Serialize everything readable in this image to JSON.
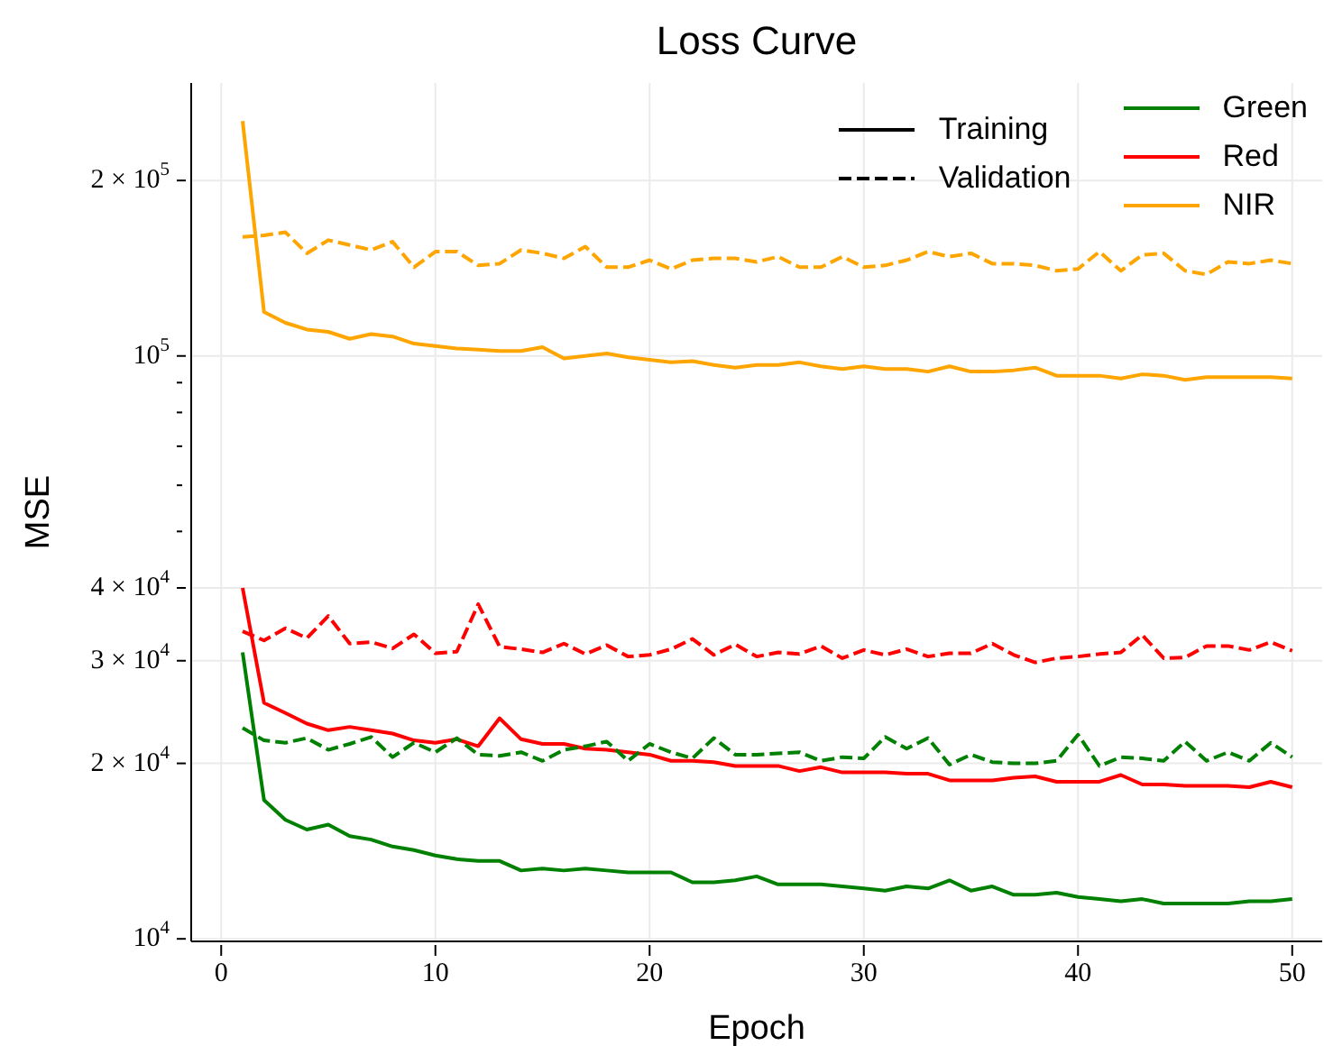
{
  "chart_data": {
    "type": "line",
    "title": "Loss Curve",
    "xlabel": "Epoch",
    "ylabel": "MSE",
    "x": [
      1,
      2,
      3,
      4,
      5,
      6,
      7,
      8,
      9,
      10,
      11,
      12,
      13,
      14,
      15,
      16,
      17,
      18,
      19,
      20,
      21,
      22,
      23,
      24,
      25,
      26,
      27,
      28,
      29,
      30,
      31,
      32,
      33,
      34,
      35,
      36,
      37,
      38,
      39,
      40,
      41,
      42,
      43,
      44,
      45,
      46,
      47,
      48,
      49,
      50
    ],
    "xlim": [
      -1.4,
      51.4
    ],
    "xticks": [
      0,
      10,
      20,
      30,
      40,
      50
    ],
    "log": "y",
    "ylim": [
      9900,
      294000
    ],
    "yticks": [
      {
        "value": 10000,
        "label": "10$^{4}$"
      },
      {
        "value": 20000,
        "label": "2 × 10$^{4}$"
      },
      {
        "value": 30000,
        "label": "3 × 10$^{4}$"
      },
      {
        "value": 40000,
        "label": "4 × 10$^{4}$"
      },
      {
        "value": 50000,
        "label": null
      },
      {
        "value": 60000,
        "label": null
      },
      {
        "value": 70000,
        "label": null
      },
      {
        "value": 80000,
        "label": null
      },
      {
        "value": 90000,
        "label": null
      },
      {
        "value": 100000,
        "label": "10$^{5}$"
      },
      {
        "value": 200000,
        "label": "2 × 10$^{5}$"
      }
    ],
    "grid": true,
    "legend": "top right",
    "marker": "none",
    "series": [
      {
        "name": "Training",
        "color": "#000000",
        "line_style": "solid",
        "values": [
          null,
          null,
          null,
          null,
          null,
          null,
          null,
          null,
          null,
          null,
          null,
          null,
          null,
          null,
          null,
          null,
          null,
          null,
          null,
          null,
          null,
          null,
          null,
          null,
          null,
          null,
          null,
          null,
          null,
          null,
          null,
          null,
          null,
          null,
          null,
          null,
          null,
          null,
          null,
          null,
          null,
          null,
          null,
          null,
          null,
          null,
          null,
          null,
          null,
          null
        ]
      },
      {
        "name": "Validation",
        "color": "#000000",
        "line_style": "dashed",
        "values": [
          null,
          null,
          null,
          null,
          null,
          null,
          null,
          null,
          null,
          null,
          null,
          null,
          null,
          null,
          null,
          null,
          null,
          null,
          null,
          null,
          null,
          null,
          null,
          null,
          null,
          null,
          null,
          null,
          null,
          null,
          null,
          null,
          null,
          null,
          null,
          null,
          null,
          null,
          null,
          null,
          null,
          null,
          null,
          null,
          null,
          null,
          null,
          null,
          null,
          null
        ]
      },
      {
        "name": "Green",
        "color": "#008000",
        "line_style": "solid",
        "values": [
          31000,
          17300,
          16000,
          15400,
          15700,
          15000,
          14800,
          14400,
          14200,
          13900,
          13700,
          13600,
          13600,
          13100,
          13200,
          13100,
          13200,
          13100,
          13000,
          13000,
          13000,
          12500,
          12500,
          12600,
          12800,
          12400,
          12400,
          12400,
          12300,
          12200,
          12100,
          12300,
          12200,
          12600,
          12100,
          12300,
          11900,
          11900,
          12000,
          11800,
          11700,
          11600,
          11700,
          11500,
          11500,
          11500,
          11500,
          11600,
          11600,
          11700
        ]
      },
      {
        "name": "Red",
        "color": "#ff0000",
        "line_style": "solid",
        "values": [
          40000,
          25400,
          24400,
          23400,
          22800,
          23100,
          22800,
          22500,
          21900,
          21700,
          22000,
          21400,
          23900,
          22000,
          21600,
          21600,
          21200,
          21100,
          20900,
          20700,
          20200,
          20200,
          20100,
          19800,
          19800,
          19800,
          19400,
          19700,
          19300,
          19300,
          19300,
          19200,
          19200,
          18700,
          18700,
          18700,
          18900,
          19000,
          18600,
          18600,
          18600,
          19100,
          18400,
          18400,
          18300,
          18300,
          18300,
          18200,
          18600,
          18200
        ]
      },
      {
        "name": "NIR",
        "color": "#ffa500",
        "line_style": "solid",
        "values": [
          253000,
          119000,
          114000,
          111000,
          110000,
          107000,
          109000,
          108000,
          105000,
          104000,
          103000,
          102500,
          102000,
          102000,
          103500,
          99000,
          100000,
          101000,
          99500,
          98500,
          97500,
          98000,
          96500,
          95500,
          96500,
          96500,
          97500,
          96000,
          95000,
          96000,
          95000,
          95000,
          94000,
          96000,
          94000,
          94000,
          94500,
          95500,
          92500,
          92500,
          92500,
          91500,
          93000,
          92500,
          91000,
          92000,
          92000,
          92000,
          92000,
          91500
        ]
      },
      {
        "color": "#008000",
        "line_style": "dashed",
        "values": [
          23000,
          21900,
          21700,
          22100,
          21100,
          21600,
          22200,
          20500,
          21700,
          20900,
          22100,
          20700,
          20600,
          20900,
          20200,
          21100,
          21400,
          21800,
          20200,
          21600,
          20900,
          20400,
          22100,
          20700,
          20700,
          20800,
          20900,
          20200,
          20500,
          20400,
          22200,
          21200,
          22100,
          19900,
          20700,
          20100,
          20000,
          20000,
          20200,
          22400,
          19800,
          20500,
          20400,
          20200,
          21800,
          20200,
          20900,
          20200,
          21700,
          20500
        ]
      },
      {
        "color": "#ff0000",
        "line_style": "dashed",
        "values": [
          33700,
          32500,
          34100,
          32800,
          35800,
          32100,
          32300,
          31500,
          33300,
          30900,
          31100,
          37500,
          31700,
          31400,
          31000,
          32100,
          30800,
          31900,
          30500,
          30700,
          31400,
          32700,
          30700,
          32000,
          30500,
          31000,
          30800,
          31800,
          30300,
          31300,
          30700,
          31400,
          30500,
          30900,
          30900,
          32100,
          30700,
          29800,
          30300,
          30500,
          30800,
          31000,
          33200,
          30300,
          30400,
          31800,
          31800,
          31300,
          32300,
          31200
        ]
      },
      {
        "color": "#ffa500",
        "line_style": "dashed",
        "values": [
          160000,
          161000,
          163000,
          150000,
          158000,
          155000,
          152000,
          157000,
          142000,
          151000,
          151000,
          143000,
          144000,
          152000,
          150000,
          147000,
          154000,
          142000,
          142000,
          146000,
          141000,
          146000,
          147000,
          147000,
          145000,
          148000,
          142000,
          142000,
          148000,
          142000,
          143000,
          146000,
          151000,
          148000,
          150000,
          144000,
          144000,
          143000,
          140000,
          141000,
          151000,
          140000,
          149000,
          150000,
          140000,
          138000,
          145000,
          144000,
          146000,
          144000
        ]
      }
    ]
  }
}
